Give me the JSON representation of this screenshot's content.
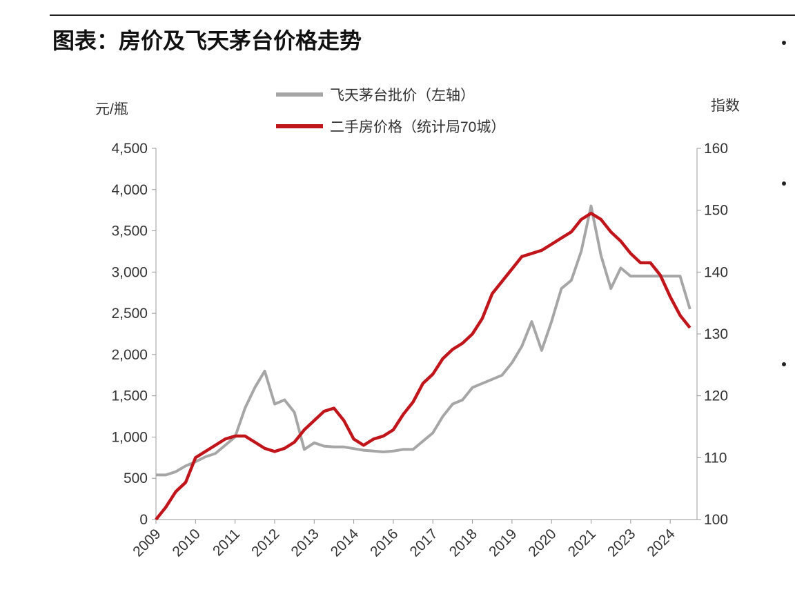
{
  "chart_data": {
    "type": "line",
    "title": "图表：房价及飞天茅台价格走势",
    "y_label": "元/瓶",
    "y2_label": "指数",
    "categories": [
      "2009",
      null,
      null,
      null,
      "2010",
      null,
      null,
      null,
      "2011",
      null,
      null,
      null,
      "2012",
      null,
      null,
      null,
      "2013",
      null,
      null,
      null,
      "2014",
      null,
      null,
      null,
      "2016",
      null,
      null,
      null,
      "2017",
      null,
      null,
      null,
      "2018",
      null,
      null,
      null,
      "2019",
      null,
      null,
      null,
      "2020",
      null,
      null,
      null,
      "2021",
      null,
      null,
      null,
      "2023",
      null,
      null,
      null,
      "2024",
      null,
      null
    ],
    "series": [
      {
        "name": "飞天茅台批价（左轴）",
        "color": "#a6a6a6",
        "axis": "y",
        "values": [
          540,
          540,
          580,
          650,
          700,
          760,
          800,
          900,
          1000,
          1350,
          1600,
          1800,
          1400,
          1450,
          1300,
          850,
          930,
          890,
          880,
          880,
          860,
          840,
          830,
          820,
          830,
          850,
          850,
          950,
          1050,
          1250,
          1400,
          1450,
          1600,
          1650,
          1700,
          1750,
          1900,
          2100,
          2400,
          2050,
          2400,
          2800,
          2900,
          3250,
          3800,
          3200,
          2800,
          3050,
          2950,
          2950,
          2950,
          2950,
          2950,
          2950,
          2550
        ]
      },
      {
        "name": "二手房价格（统计局70城）",
        "color": "#c0151b",
        "axis": "y2",
        "values": [
          100,
          102,
          104.5,
          106,
          110,
          111,
          112,
          113,
          113.5,
          113.5,
          112.5,
          111.5,
          111,
          111.5,
          112.5,
          114.5,
          116,
          117.5,
          118,
          116,
          113,
          112,
          113,
          113.5,
          114.5,
          117,
          119,
          122,
          123.5,
          126,
          127.5,
          128.5,
          130,
          132.5,
          136.5,
          138.5,
          140.5,
          142.5,
          143,
          143.5,
          144.5,
          145.5,
          146.5,
          148.5,
          149.5,
          148.5,
          146.5,
          145,
          143,
          141.5,
          141.5,
          139.5,
          136,
          133,
          131
        ]
      }
    ],
    "ylim": [
      0,
      4500
    ],
    "yticks": [
      0,
      500,
      {
        "value": 1000,
        "label": "1,000"
      },
      {
        "value": 1500,
        "label": "1,500"
      },
      {
        "value": 2000,
        "label": "2,000"
      },
      {
        "value": 2500,
        "label": "2,500"
      },
      {
        "value": 3000,
        "label": "3,000"
      },
      {
        "value": 3500,
        "label": "3,500"
      },
      {
        "value": 4000,
        "label": "4,000"
      },
      {
        "value": 4500,
        "label": "4,500"
      }
    ],
    "y2lim": [
      100,
      160
    ],
    "y2ticks": [
      100,
      110,
      120,
      130,
      140,
      150,
      160
    ],
    "grid": false
  }
}
